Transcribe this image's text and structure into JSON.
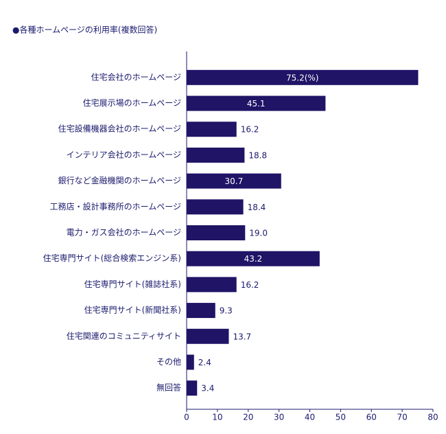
{
  "chart_data": {
    "type": "barh",
    "title": "●各種ホームページの利用率(複数回答)",
    "categories": [
      "住宅会社のホームページ",
      "住宅展示場のホームページ",
      "住宅設備機器会社のホームページ",
      "インテリア会社のホームページ",
      "銀行など金融機関のホームページ",
      "工務店・設計事務所のホームページ",
      "電力・ガス会社のホームページ",
      "住宅専門サイト(総合検索エンジン系)",
      "住宅専門サイト(雑誌社系)",
      "住宅専門サイト(新聞社系)",
      "住宅関連のコミュニティサイト",
      "その他",
      "無回答"
    ],
    "values": [
      75.2,
      45.1,
      16.2,
      18.8,
      30.7,
      18.4,
      19.0,
      43.2,
      16.2,
      9.3,
      13.7,
      2.4,
      3.4
    ],
    "value_labels": [
      "75.2(%)",
      "45.1",
      "16.2",
      "18.8",
      "30.7",
      "18.4",
      "19.0",
      "43.2",
      "16.2",
      "9.3",
      "13.7",
      "2.4",
      "3.4"
    ],
    "color": "#1f1466",
    "xlim": [
      0,
      80
    ],
    "xticks": [
      0,
      10,
      20,
      30,
      40,
      50,
      60,
      70,
      80
    ],
    "grid": false
  }
}
